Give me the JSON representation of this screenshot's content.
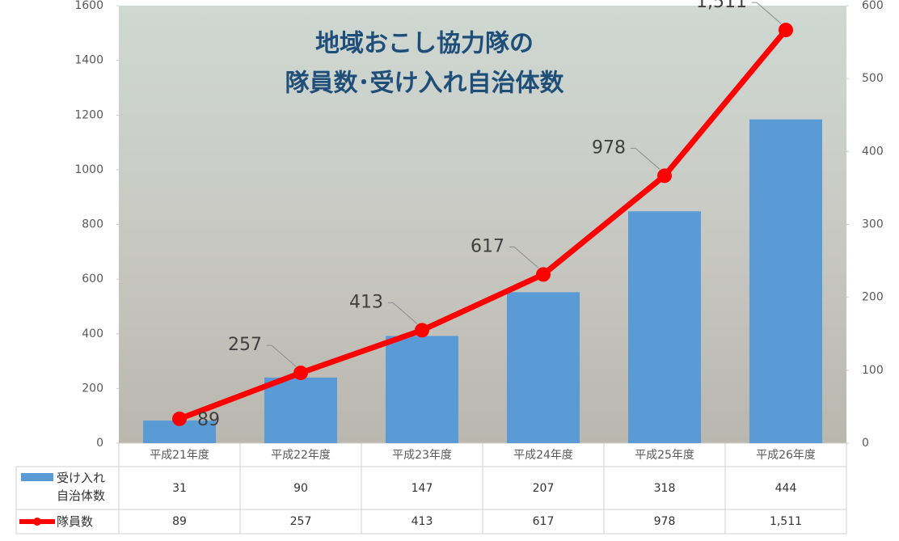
{
  "chart_data": {
    "type": "bar_line",
    "title": "地域おこし協力隊の",
    "subtitle": "隊員数･受け入れ自治体数",
    "categories": [
      "平成21年度",
      "平成22年度",
      "平成23年度",
      "平成24年度",
      "平成25年度",
      "平成26年度"
    ],
    "series": [
      {
        "name": "受け入れ自治体数",
        "type": "bar",
        "axis": "y2",
        "color": "#5b9bd5",
        "values": [
          31,
          90,
          147,
          207,
          318,
          444
        ]
      },
      {
        "name": "隊員数",
        "type": "line",
        "color": "#ff0000",
        "values": [
          89,
          257,
          413,
          617,
          978,
          1511
        ],
        "value_labels": [
          "89",
          "257",
          "413",
          "617",
          "978",
          "1,511"
        ]
      }
    ],
    "ylim": [
      0,
      1600
    ],
    "yticks": [
      0,
      200,
      400,
      600,
      800,
      1000,
      1200,
      1400,
      1600
    ],
    "y2lim": [
      0,
      600
    ],
    "y2ticks": [
      0,
      100,
      200,
      300,
      400,
      500,
      600
    ]
  }
}
